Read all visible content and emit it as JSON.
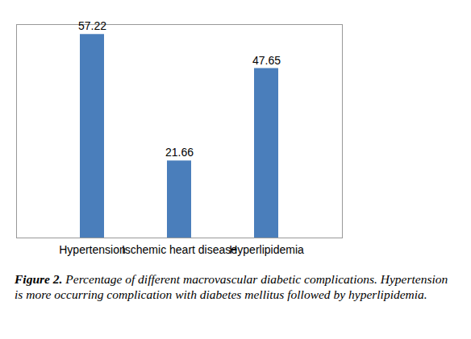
{
  "chart_data": {
    "type": "bar",
    "categories": [
      "Hypertension",
      "Ischemic heart disease",
      "Hyperlipidemia"
    ],
    "values": [
      57.22,
      21.66,
      47.65
    ],
    "color": "#4a7ebb",
    "ylim": [
      0,
      60
    ],
    "yticks": [],
    "grid": false,
    "data_labels": true,
    "tick_labels": "x",
    "caption": {
      "label": "Figure 2.",
      "text": "Percentage of different macrovascular diabetic complications. Hypertension is more occurring complication with diabetes mellitus followed by hyperlipidemia."
    }
  }
}
